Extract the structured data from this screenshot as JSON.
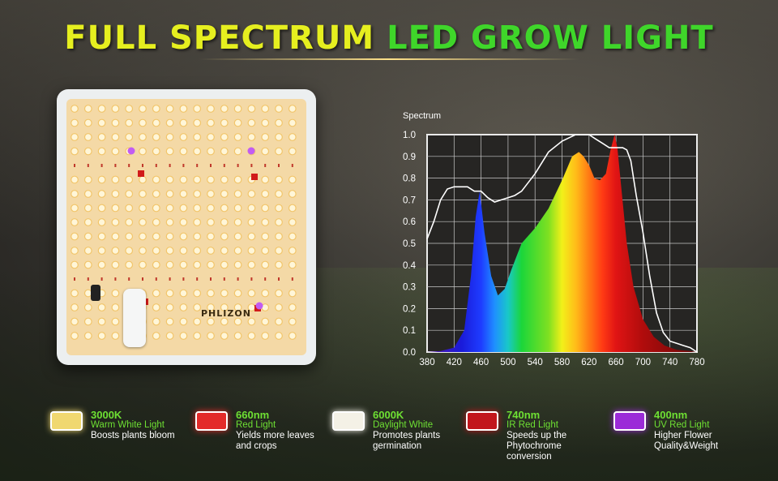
{
  "header": {
    "title_part1": "FULL SPECTRUM",
    "title_part2": "LED GROW LIGHT"
  },
  "product": {
    "brand": "PHLIZON"
  },
  "chart_data": {
    "type": "line",
    "title": "Spectrum",
    "xlabel": "",
    "ylabel": "",
    "x_ticks": [
      380,
      420,
      460,
      500,
      540,
      580,
      620,
      660,
      700,
      740,
      780
    ],
    "y_ticks": [
      "0.0",
      "0.1",
      "0.2",
      "0.3",
      "0.4",
      "0.5",
      "0.6",
      "0.7",
      "0.8",
      "0.9",
      "1.0"
    ],
    "xlim": [
      380,
      780
    ],
    "ylim": [
      0,
      1.0
    ],
    "grid": true,
    "series": [
      {
        "role": "filled colored spectrum",
        "x": [
          380,
          400,
          420,
          435,
          445,
          452,
          458,
          465,
          475,
          485,
          495,
          505,
          520,
          540,
          560,
          580,
          595,
          605,
          612,
          620,
          628,
          636,
          645,
          652,
          658,
          662,
          668,
          676,
          686,
          700,
          716,
          732,
          750,
          770,
          780
        ],
        "y": [
          0.0,
          0.005,
          0.02,
          0.1,
          0.35,
          0.62,
          0.74,
          0.55,
          0.35,
          0.26,
          0.29,
          0.38,
          0.5,
          0.57,
          0.66,
          0.79,
          0.9,
          0.92,
          0.9,
          0.86,
          0.8,
          0.79,
          0.82,
          0.93,
          1.0,
          0.94,
          0.75,
          0.5,
          0.3,
          0.15,
          0.07,
          0.03,
          0.01,
          0.005,
          0.0
        ]
      },
      {
        "role": "white outline curve",
        "x": [
          380,
          390,
          400,
          410,
          420,
          430,
          440,
          450,
          460,
          470,
          480,
          490,
          500,
          510,
          520,
          540,
          560,
          580,
          600,
          620,
          630,
          640,
          650,
          660,
          670,
          676,
          682,
          690,
          700,
          710,
          720,
          730,
          740,
          750,
          760,
          770,
          780
        ],
        "y": [
          0.52,
          0.6,
          0.7,
          0.75,
          0.76,
          0.76,
          0.76,
          0.74,
          0.74,
          0.71,
          0.69,
          0.7,
          0.71,
          0.72,
          0.74,
          0.82,
          0.92,
          0.97,
          1.0,
          1.0,
          0.98,
          0.96,
          0.94,
          0.94,
          0.94,
          0.93,
          0.88,
          0.72,
          0.55,
          0.35,
          0.18,
          0.09,
          0.05,
          0.04,
          0.03,
          0.02,
          0.0
        ]
      }
    ]
  },
  "legend": [
    {
      "head": "3000K",
      "sub": "Warm White Light",
      "desc": [
        "Boosts plants bloom"
      ],
      "color": "#f0d870"
    },
    {
      "head": "660nm",
      "sub": "Red Light",
      "desc": [
        "Yields more leaves",
        "and crops"
      ],
      "color": "#e32a2a"
    },
    {
      "head": "6000K",
      "sub": "Daylight White",
      "desc": [
        "Promotes plants",
        "germination"
      ],
      "color": "#f4f1e6"
    },
    {
      "head": "740nm",
      "sub": "IR Red Light",
      "desc": [
        "Speeds up the",
        "Phytochrome conversion"
      ],
      "color": "#c2151c"
    },
    {
      "head": "400nm",
      "sub": "UV Red Light",
      "desc": [
        "Higher Flower",
        "Quality&Weight"
      ],
      "color": "#9b2ad8"
    }
  ],
  "colors": {
    "title_yellow": "#e6ef1f",
    "title_green": "#3fd62a",
    "legend_green": "#6ee033"
  }
}
